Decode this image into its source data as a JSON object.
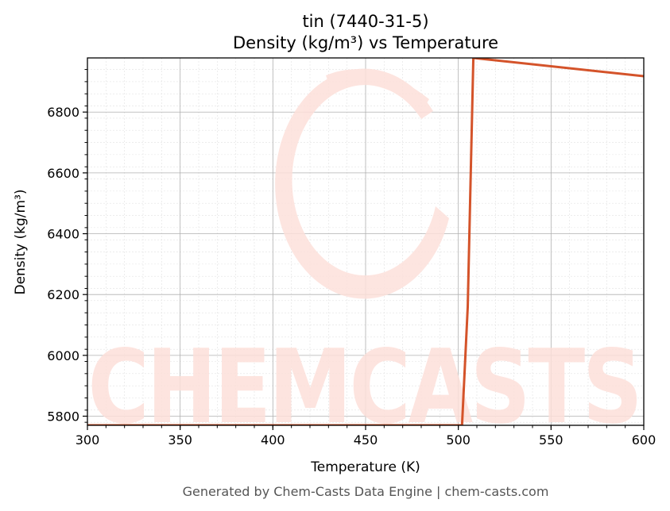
{
  "chart_data": {
    "type": "line",
    "title": "tin (7440-31-5)",
    "subtitle": "Density (kg/m³) vs Temperature",
    "xlabel": "Temperature (K)",
    "ylabel": "Density (kg/m³)",
    "xlim": [
      300,
      600
    ],
    "ylim": [
      5770,
      6978
    ],
    "xticks": [
      300,
      350,
      400,
      450,
      500,
      550,
      600
    ],
    "yticks": [
      5800,
      6000,
      6200,
      6400,
      6600,
      6800
    ],
    "grid": true,
    "series": [
      {
        "color": "#d4532a",
        "x": [
          300,
          502,
          505.08,
          508.1,
          600
        ],
        "y": [
          5770,
          5770,
          6160,
          6978,
          6918
        ]
      }
    ]
  },
  "watermark": {
    "text": "CHEMCASTS",
    "color": "#fde0da"
  },
  "footer": "Generated by Chem-Casts Data Engine | chem-casts.com"
}
